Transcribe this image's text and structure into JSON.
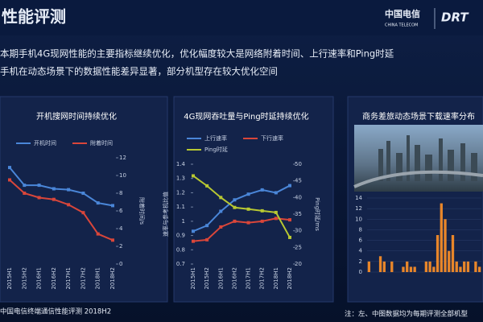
{
  "slide": {
    "title": "性能评测",
    "body": [
      "本期手机4G现网性能的主要指标继续优化，优化幅度较大是网络附着时间、上行速率和Ping时延",
      "手机在动态场景下的数据性能差异显著，部分机型存在较大优化空间"
    ],
    "logo": "中国电信",
    "logo_en": "CHINA TELECOM",
    "logo2": "DRT",
    "footer": "中国电信终端通信性能评测 2018H2",
    "note": "注：左、中图数据均为每期评测全部机型"
  },
  "chart_data": [
    {
      "type": "line",
      "title": "开机搜网时间持续优化",
      "categories": [
        "2015H1",
        "2015H2",
        "2016H1",
        "2016H2",
        "2017H1",
        "2017H2",
        "2018H1",
        "2018H2"
      ],
      "series": [
        {
          "name": "开机时间",
          "color": "#4a86d8",
          "axis": "y2",
          "values": [
            10.9,
            8.9,
            8.9,
            8.5,
            8.4,
            8.0,
            6.9,
            6.6
          ]
        },
        {
          "name": "附着时间",
          "color": "#d9463a",
          "axis": "y2",
          "values": [
            9.5,
            8.0,
            7.5,
            7.3,
            6.7,
            5.8,
            3.4,
            2.7
          ]
        }
      ],
      "y2lim": [
        0,
        12
      ],
      "y2ticks": [
        0,
        2,
        4,
        6,
        8,
        10,
        12
      ],
      "y2label": "附着时间/s"
    },
    {
      "type": "line",
      "title": "4G现网吞吐量与Ping时延持续优化",
      "categories": [
        "2015H1",
        "2015H2",
        "2016H1",
        "2016H2",
        "2017H1",
        "2017H2",
        "2018H1",
        "2018H2"
      ],
      "series": [
        {
          "name": "上行速率",
          "color": "#4a86d8",
          "values": [
            0.93,
            0.97,
            1.07,
            1.15,
            1.19,
            1.22,
            1.2,
            1.25
          ]
        },
        {
          "name": "下行速率",
          "color": "#d9463a",
          "values": [
            0.86,
            0.87,
            0.96,
            1.0,
            0.99,
            1.0,
            1.02,
            1.01
          ]
        },
        {
          "name": "Ping时延",
          "color": "#b8c832",
          "axis": "y2",
          "values": [
            46.5,
            43.5,
            40,
            37,
            36.5,
            36,
            35.5,
            28
          ]
        }
      ],
      "ylim": [
        0.7,
        1.4
      ],
      "yticks": [
        0.7,
        0.8,
        0.9,
        1,
        1.1,
        1.2,
        1.3,
        1.4
      ],
      "ylabel": "速率与参考机比值",
      "y2lim": [
        20,
        50
      ],
      "y2ticks": [
        20,
        25,
        30,
        35,
        40,
        45,
        50
      ],
      "y2label": "Ping时延/ms"
    },
    {
      "type": "bar",
      "title": "商务差旅动态场景下载速率分布",
      "color": "#e8862a",
      "categories": [
        null,
        null,
        null,
        null,
        null,
        null,
        null,
        null,
        null,
        null,
        null,
        null,
        null,
        null,
        null,
        null,
        null,
        null,
        null,
        null,
        null,
        null,
        null,
        null,
        null,
        null,
        null,
        null,
        null,
        null
      ],
      "values": [
        2,
        0,
        0,
        3,
        2,
        0,
        2,
        0,
        0,
        1,
        2,
        1,
        1,
        0,
        0,
        2,
        2,
        1,
        7,
        13,
        10,
        4,
        7,
        2,
        1,
        2,
        2,
        0,
        2,
        1
      ],
      "ylim": [
        0,
        14
      ],
      "yticks": [
        0,
        2,
        4,
        6,
        8,
        10,
        12,
        14
      ]
    }
  ]
}
